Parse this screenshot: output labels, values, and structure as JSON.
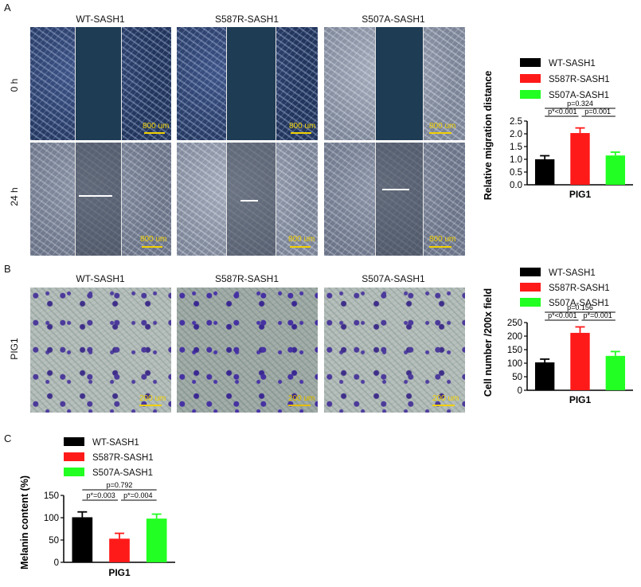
{
  "panels": {
    "A": {
      "letter": "A",
      "columns": [
        "WT-SASH1",
        "S587R-SASH1",
        "S507A-SASH1"
      ],
      "rows": [
        "0 h",
        "24 h"
      ],
      "scale_bar": "800 um"
    },
    "B": {
      "letter": "B",
      "columns": [
        "WT-SASH1",
        "S587R-SASH1",
        "S507A-SASH1"
      ],
      "row": "PIG1",
      "scale_bar": "200 um"
    },
    "C": {
      "letter": "C"
    }
  },
  "colors": {
    "wt": "#000000",
    "s587r": "#ff1a1a",
    "s507a": "#22ff22",
    "scale": "#f1d000"
  },
  "chart_data": [
    {
      "id": "migration",
      "type": "bar",
      "categories": [
        "WT-SASH1",
        "S587R-SASH1",
        "S507A-SASH1"
      ],
      "values": [
        1.0,
        2.03,
        1.15
      ],
      "errors": [
        0.14,
        0.2,
        0.13
      ],
      "xlabel": "PIG1",
      "ylabel": "Relative migration distance",
      "ylim": [
        0,
        2.5
      ],
      "yticks": [
        "0.0",
        "0.5",
        "1.0",
        "1.5",
        "2.0",
        "2.5"
      ],
      "legend": [
        "WT-SASH1",
        "S587R-SASH1",
        "S507A-SASH1"
      ],
      "annotations": [
        "p=0.324",
        "p*<0.001",
        "p=0.001"
      ]
    },
    {
      "id": "invasion",
      "type": "bar",
      "categories": [
        "WT-SASH1",
        "S587R-SASH1",
        "S507A-SASH1"
      ],
      "values": [
        103,
        212,
        127
      ],
      "errors": [
        12,
        22,
        16
      ],
      "xlabel": "PIG1",
      "ylabel": "Cell number /200x field",
      "ylim": [
        0,
        250
      ],
      "yticks": [
        "0",
        "50",
        "100",
        "150",
        "200",
        "250"
      ],
      "legend": [
        "WT-SASH1",
        "S587R-SASH1",
        "S507A-SASH1"
      ],
      "annotations": [
        "p=0.156",
        "p*<0.001",
        "p*=0.001"
      ]
    },
    {
      "id": "melanin",
      "type": "bar",
      "categories": [
        "WT-SASH1",
        "S587R-SASH1",
        "S507A-SASH1"
      ],
      "values": [
        101,
        53,
        98
      ],
      "errors": [
        12,
        12,
        10
      ],
      "xlabel": "PIG1",
      "ylabel": "Melanin content (%)",
      "ylim": [
        0,
        150
      ],
      "yticks": [
        "0",
        "50",
        "100",
        "150"
      ],
      "legend": [
        "WT-SASH1",
        "S587R-SASH1",
        "S507A-SASH1"
      ],
      "annotations": [
        "p=0.792",
        "p*=0.003",
        "p*=0.004"
      ]
    }
  ]
}
